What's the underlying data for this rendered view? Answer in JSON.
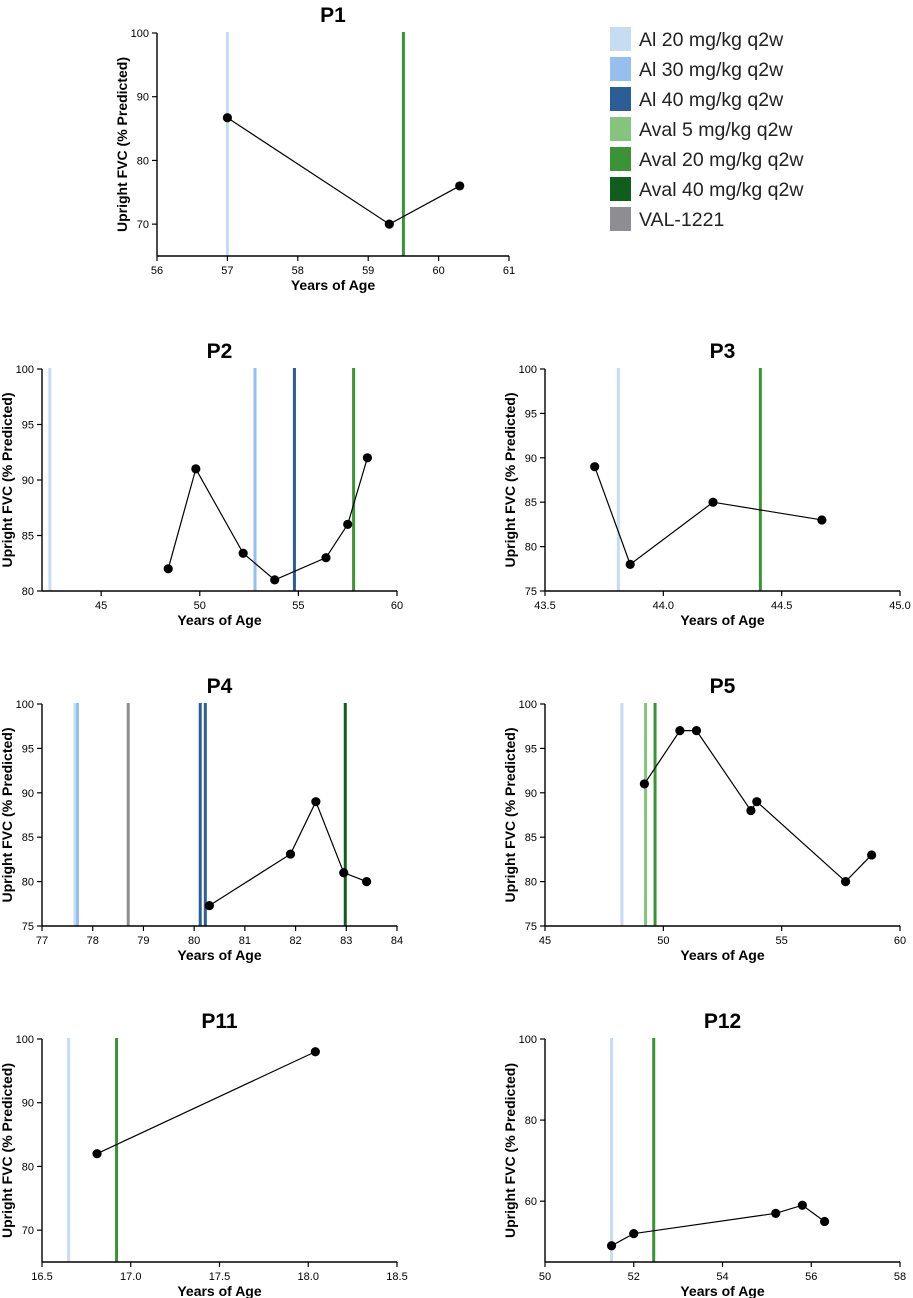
{
  "legend": [
    {
      "label": "Al 20 mg/kg q2w",
      "color": "#c6dcf2"
    },
    {
      "label": "Al 30 mg/kg q2w",
      "color": "#95bfee"
    },
    {
      "label": "Al 40 mg/kg q2w",
      "color": "#2b5e96"
    },
    {
      "label": "Aval 5 mg/kg q2w",
      "color": "#84c47c"
    },
    {
      "label": "Aval 20 mg/kg q2w",
      "color": "#3a9334"
    },
    {
      "label": "Aval 40 mg/kg q2w",
      "color": "#0f5e1c"
    },
    {
      "label": "VAL-1221",
      "color": "#8e8e92"
    }
  ],
  "chart_data": [
    {
      "type": "line",
      "title": "P1",
      "xlabel": "Years of Age",
      "ylabel": "Upright FVC (% Predicted)",
      "xlim": [
        56,
        61
      ],
      "ylim": [
        65,
        100
      ],
      "xticks": [
        "56",
        "57",
        "58",
        "59",
        "60",
        "61"
      ],
      "yticks": [
        "70",
        "80",
        "90",
        "100"
      ],
      "x": [
        57.0,
        59.3,
        60.3
      ],
      "y": [
        86.7,
        70.0,
        76.0
      ],
      "treatment_lines": [
        {
          "treatment": "Al 20 mg/kg q2w",
          "x": 57.0
        },
        {
          "treatment": "Aval 20 mg/kg q2w",
          "x": 59.5
        }
      ]
    },
    {
      "type": "line",
      "title": "P2",
      "xlabel": "Years of Age",
      "ylabel": "Upright FVC (% Predicted)",
      "xlim": [
        42,
        60
      ],
      "ylim": [
        80,
        100
      ],
      "xticks": [
        "45",
        "50",
        "55",
        "60"
      ],
      "yticks": [
        "80",
        "85",
        "90",
        "95",
        "100"
      ],
      "x": [
        48.4,
        49.8,
        52.2,
        53.8,
        56.4,
        57.5,
        58.5
      ],
      "y": [
        82.0,
        91.0,
        83.4,
        81.0,
        83.0,
        86.0,
        92.0
      ],
      "treatment_lines": [
        {
          "treatment": "Al 20 mg/kg q2w",
          "x": 42.4
        },
        {
          "treatment": "Al 30 mg/kg q2w",
          "x": 52.8
        },
        {
          "treatment": "Al 40 mg/kg q2w",
          "x": 54.8
        },
        {
          "treatment": "Aval 20 mg/kg q2w",
          "x": 57.8
        }
      ]
    },
    {
      "type": "line",
      "title": "P3",
      "xlabel": "Years of Age",
      "ylabel": "Upright FVC (% Predicted)",
      "xlim": [
        43.5,
        45.0
      ],
      "ylim": [
        75,
        100
      ],
      "xticks": [
        "43.5",
        "44.0",
        "44.5",
        "45.0"
      ],
      "yticks": [
        "75",
        "80",
        "85",
        "90",
        "95",
        "100"
      ],
      "x": [
        43.71,
        43.86,
        44.21,
        44.67
      ],
      "y": [
        89.0,
        78.0,
        85.0,
        83.0
      ],
      "treatment_lines": [
        {
          "treatment": "Al 20 mg/kg q2w",
          "x": 43.81
        },
        {
          "treatment": "Aval 20 mg/kg q2w",
          "x": 44.41
        }
      ]
    },
    {
      "type": "line",
      "title": "P4",
      "xlabel": "Years of Age",
      "ylabel": "Upright FVC (% Predicted)",
      "xlim": [
        77,
        84
      ],
      "ylim": [
        75,
        100
      ],
      "xticks": [
        "77",
        "78",
        "79",
        "80",
        "81",
        "82",
        "83",
        "84"
      ],
      "yticks": [
        "75",
        "80",
        "85",
        "90",
        "95",
        "100"
      ],
      "x": [
        80.3,
        81.9,
        82.4,
        82.95,
        83.4
      ],
      "y": [
        77.3,
        83.1,
        89.0,
        81.0,
        80.0
      ],
      "treatment_lines": [
        {
          "treatment": "Al 20 mg/kg q2w",
          "x": 77.65
        },
        {
          "treatment": "Al 30 mg/kg q2w",
          "x": 77.7
        },
        {
          "treatment": "VAL-1221",
          "x": 78.7
        },
        {
          "treatment": "Al 40 mg/kg q2w",
          "x": 80.12
        },
        {
          "treatment": "Al 40 mg/kg q2w",
          "x": 80.22
        },
        {
          "treatment": "Aval 40 mg/kg q2w",
          "x": 82.98
        }
      ]
    },
    {
      "type": "line",
      "title": "P5",
      "xlabel": "Years of Age",
      "ylabel": "Upright FVC (% Predicted)",
      "xlim": [
        45,
        60
      ],
      "ylim": [
        75,
        100
      ],
      "xticks": [
        "45",
        "50",
        "55",
        "60"
      ],
      "yticks": [
        "75",
        "80",
        "85",
        "90",
        "95",
        "100"
      ],
      "x": [
        49.2,
        50.7,
        51.4,
        53.7,
        53.95,
        57.7,
        58.8
      ],
      "y": [
        91.0,
        97.0,
        97.0,
        88.0,
        89.0,
        80.0,
        83.0
      ],
      "treatment_lines": [
        {
          "treatment": "Al 20 mg/kg q2w",
          "x": 48.25
        },
        {
          "treatment": "Aval 5 mg/kg q2w",
          "x": 49.25
        },
        {
          "treatment": "Aval 20 mg/kg q2w",
          "x": 49.65
        }
      ]
    },
    {
      "type": "line",
      "title": "P11",
      "xlabel": "Years of Age",
      "ylabel": "Upright FVC (% Predicted)",
      "xlim": [
        16.5,
        18.5
      ],
      "ylim": [
        65,
        100
      ],
      "xticks": [
        "16.5",
        "17.0",
        "17.5",
        "18.0",
        "18.5"
      ],
      "yticks": [
        "70",
        "80",
        "90",
        "100"
      ],
      "x": [
        16.81,
        18.04
      ],
      "y": [
        82.0,
        98.0
      ],
      "treatment_lines": [
        {
          "treatment": "Al 20 mg/kg q2w",
          "x": 16.65
        },
        {
          "treatment": "Aval 20 mg/kg q2w",
          "x": 16.92
        }
      ]
    },
    {
      "type": "line",
      "title": "P12",
      "xlabel": "Years of Age",
      "ylabel": "Upright FVC (% Predicted)",
      "xlim": [
        50,
        58
      ],
      "ylim": [
        45,
        100
      ],
      "xticks": [
        "50",
        "52",
        "54",
        "56",
        "58"
      ],
      "yticks": [
        "60",
        "80",
        "100"
      ],
      "x": [
        51.5,
        52.0,
        55.2,
        55.8,
        56.3
      ],
      "y": [
        49.0,
        52.0,
        57.0,
        59.0,
        55.0
      ],
      "treatment_lines": [
        {
          "treatment": "Al 20 mg/kg q2w",
          "x": 51.5
        },
        {
          "treatment": "Aval 20 mg/kg q2w",
          "x": 52.45
        }
      ]
    }
  ]
}
